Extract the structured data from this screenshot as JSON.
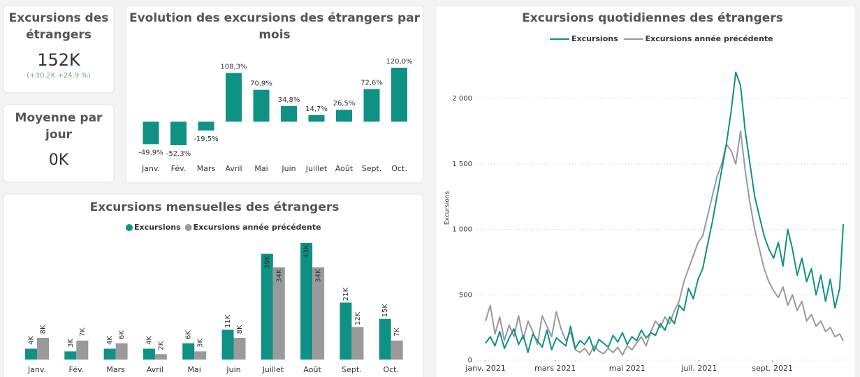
{
  "kpis": [
    {
      "title_lines": [
        "Excursions des",
        "étrangers"
      ],
      "value": "152K",
      "delta": "(+30,2K +24.9 %)"
    },
    {
      "title_lines": [
        "Moyenne par",
        "jour"
      ],
      "value": "0K"
    }
  ],
  "chart_data": [
    {
      "type": "bar",
      "title_lines": [
        "Evolution des excursions des étrangers par",
        "mois"
      ],
      "categories": [
        "Janv.",
        "Fév.",
        "Mars",
        "Avril",
        "Mai",
        "Juin",
        "Juillet",
        "Août",
        "Sept.",
        "Oct."
      ],
      "values": [
        -49.9,
        -52.3,
        -19.5,
        108.3,
        70.9,
        34.8,
        14.7,
        26.5,
        72.6,
        120.0
      ],
      "value_labels": [
        "-49,9%",
        "-52,3%",
        "-19,5%",
        "108,3%",
        "70,9%",
        "34,8%",
        "14,7%",
        "26,5%",
        "72,6%",
        "120,0%"
      ],
      "color": "#0f9183"
    },
    {
      "type": "grouped_bar",
      "title": "Excursions mensuelles des étrangers",
      "categories": [
        "Janv.",
        "Fév.",
        "Mars",
        "Avril",
        "Mai",
        "Juin",
        "Juillet",
        "Août",
        "Sept.",
        "Oct."
      ],
      "series": [
        {
          "name": "Excursions",
          "color": "#0f9183",
          "values": [
            4000,
            3000,
            4000,
            4000,
            6000,
            11000,
            39000,
            43000,
            21000,
            15000
          ],
          "value_labels": [
            "4K",
            "3K",
            "4K",
            "4K",
            "6K",
            "11K",
            "39K",
            "43K",
            "21K",
            "15K"
          ]
        },
        {
          "name": "Excursions année précédente",
          "color": "#9a9a9a",
          "values": [
            8000,
            7000,
            6000,
            2000,
            3000,
            8000,
            34000,
            34000,
            12000,
            7000
          ],
          "value_labels": [
            "8K",
            "7K",
            "6K",
            "2K",
            "3K",
            "8K",
            "34K",
            "34K",
            "12K",
            "7K"
          ]
        }
      ]
    },
    {
      "type": "line",
      "title": "Excursions quotidiennes des étrangers",
      "y_label": "Excursions",
      "x": [
        0,
        4,
        8,
        12,
        16,
        20,
        24,
        28,
        32,
        36,
        40,
        44,
        48,
        52,
        56,
        60,
        64,
        68,
        72,
        76,
        80,
        84,
        88,
        92,
        96,
        100,
        104,
        108,
        112,
        116,
        120,
        124,
        128,
        132,
        136,
        140,
        144,
        148,
        152,
        156,
        160,
        164,
        168,
        172,
        176,
        180,
        184,
        188,
        192,
        196,
        200,
        204,
        208,
        212,
        216,
        220,
        224,
        228,
        232,
        236,
        240,
        244,
        248,
        252,
        256,
        260,
        264,
        268,
        272,
        276,
        280,
        284,
        288,
        292,
        296,
        300,
        303
      ],
      "xlim": [
        0,
        303
      ],
      "xticks": [
        {
          "value": 0,
          "label": "janv. 2021"
        },
        {
          "value": 59,
          "label": "mars 2021"
        },
        {
          "value": 120,
          "label": "mai 2021"
        },
        {
          "value": 181,
          "label": "juil. 2021"
        },
        {
          "value": 243,
          "label": "sept. 2021"
        }
      ],
      "ylim": [
        0,
        2400
      ],
      "yticks": [
        0,
        500,
        {
          "value": 1000,
          "label": "1 000"
        },
        {
          "value": 1500,
          "label": "1 500"
        },
        {
          "value": 2000,
          "label": "2 000"
        }
      ],
      "grid": true,
      "series": [
        {
          "name": "Excursions",
          "color": "#0f9183",
          "values": [
            130,
            180,
            110,
            220,
            90,
            170,
            240,
            120,
            190,
            60,
            200,
            150,
            100,
            230,
            80,
            170,
            140,
            110,
            260,
            90,
            150,
            120,
            180,
            70,
            160,
            130,
            100,
            190,
            140,
            210,
            120,
            180,
            150,
            230,
            170,
            210,
            190,
            280,
            230,
            330,
            280,
            420,
            380,
            550,
            470,
            620,
            700,
            880,
            1050,
            1250,
            1450,
            1650,
            1900,
            2200,
            2100,
            1750,
            1500,
            1250,
            1100,
            950,
            850,
            780,
            900,
            720,
            1000,
            850,
            650,
            780,
            600,
            700,
            500,
            650,
            450,
            620,
            400,
            550,
            1040
          ]
        },
        {
          "name": "Excursions année précédente",
          "color": "#9a9a9a",
          "values": [
            300,
            420,
            200,
            330,
            150,
            270,
            180,
            340,
            160,
            300,
            220,
            120,
            340,
            260,
            180,
            370,
            240,
            150,
            220,
            80,
            60,
            90,
            40,
            110,
            70,
            50,
            90,
            60,
            100,
            40,
            110,
            80,
            130,
            180,
            110,
            220,
            300,
            250,
            330,
            280,
            380,
            450,
            600,
            700,
            800,
            900,
            950,
            1100,
            1250,
            1400,
            1500,
            1650,
            1600,
            1500,
            1750,
            1450,
            1200,
            1000,
            850,
            700,
            600,
            530,
            480,
            560,
            420,
            500,
            380,
            450,
            300,
            350,
            260,
            300,
            220,
            250,
            180,
            200,
            150
          ]
        }
      ]
    }
  ]
}
